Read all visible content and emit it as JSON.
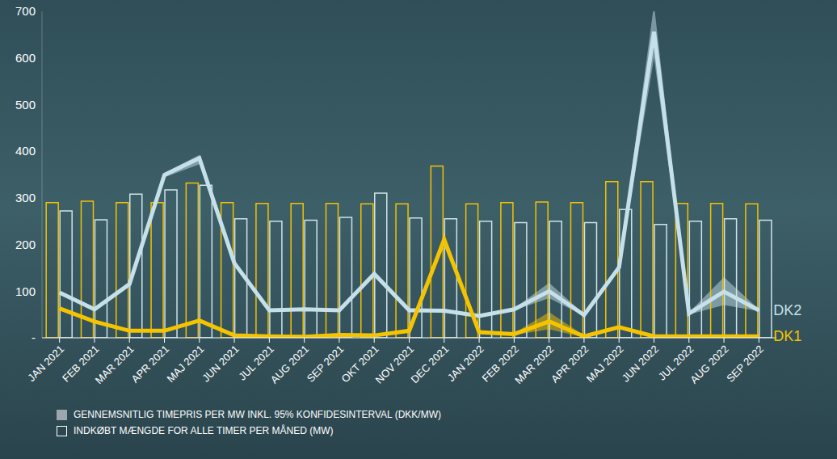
{
  "chart_data": {
    "type": "combo",
    "categories": [
      "JAN 2021",
      "FEB 2021",
      "MAR 2021",
      "APR 2021",
      "MAJ 2021",
      "JUN 2021",
      "JUL 2021",
      "AUG 2021",
      "SEP 2021",
      "OKT 2021",
      "NOV 2021",
      "DEC 2021",
      "JAN 2022",
      "FEB 2022",
      "MAR 2022",
      "APR 2022",
      "MAJ 2022",
      "JUN 2022",
      "JUL 2022",
      "AUG 2022",
      "SEP 2022"
    ],
    "series": [
      {
        "name": "DK1",
        "type": "bar",
        "color": "#f2c200",
        "values": [
          290,
          293,
          290,
          290,
          332,
          290,
          288,
          288,
          288,
          287,
          287,
          368,
          287,
          290,
          291,
          290,
          335,
          335,
          288,
          288,
          287
        ]
      },
      {
        "name": "DK2",
        "type": "bar",
        "color": "#cfe3ea",
        "values": [
          272,
          253,
          308,
          317,
          327,
          255,
          250,
          252,
          258,
          310,
          257,
          255,
          250,
          247,
          250,
          247,
          275,
          243,
          250,
          255,
          252
        ]
      },
      {
        "name": "DK2",
        "type": "line",
        "color": "#c6e0ea",
        "values": [
          97,
          61,
          115,
          349,
          385,
          160,
          59,
          61,
          59,
          137,
          59,
          58,
          47,
          61,
          100,
          49,
          151,
          656,
          52,
          99,
          59
        ],
        "ci_low": [
          95,
          59,
          113,
          344,
          372,
          157,
          57,
          59,
          57,
          133,
          57,
          56,
          45,
          59,
          85,
          47,
          145,
          600,
          50,
          70,
          57
        ],
        "ci_high": [
          99,
          63,
          117,
          354,
          392,
          163,
          61,
          63,
          61,
          141,
          61,
          60,
          49,
          63,
          118,
          51,
          157,
          715,
          54,
          130,
          61
        ]
      },
      {
        "name": "DK1",
        "type": "line",
        "color": "#f5c400",
        "values": [
          63,
          35,
          15,
          15,
          37,
          5,
          3,
          2,
          6,
          5,
          15,
          210,
          12,
          8,
          35,
          3,
          23,
          3,
          3,
          3,
          3
        ],
        "ci_low": [
          61,
          33,
          13,
          13,
          35,
          3,
          1,
          0,
          4,
          3,
          13,
          198,
          10,
          6,
          18,
          1,
          21,
          1,
          1,
          1,
          1
        ],
        "ci_high": [
          65,
          37,
          17,
          17,
          39,
          7,
          5,
          4,
          8,
          7,
          17,
          225,
          14,
          10,
          55,
          5,
          25,
          5,
          5,
          5,
          5
        ]
      }
    ],
    "ylim": [
      0,
      700
    ],
    "yticks": [
      {
        "value": 0,
        "label": "-"
      },
      100,
      200,
      300,
      400,
      500,
      600,
      700
    ],
    "annotations": [
      "GENNEMSNITLIG TIMEPRIS PER MW INKL. 95% KONFIDESINTERVAL (DKK/MW)",
      "INDKØBT MÆNGDE FOR ALLE TIMER PER MÅNED (MW)"
    ]
  }
}
